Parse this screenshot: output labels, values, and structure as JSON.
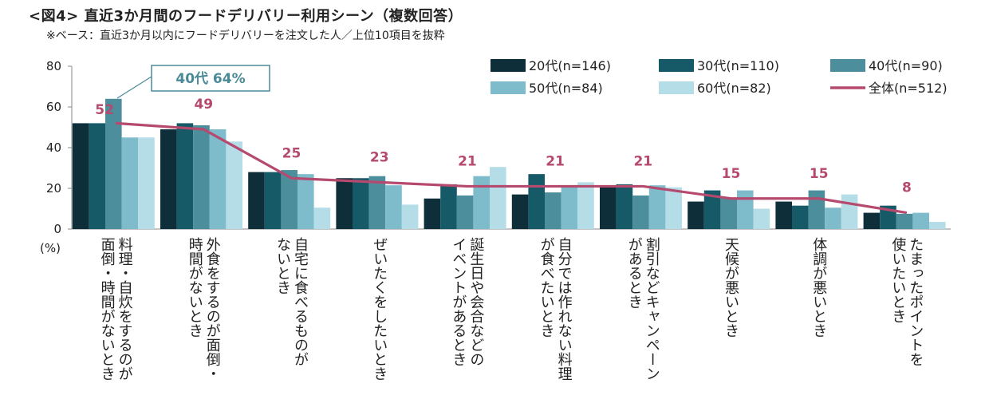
{
  "title": "<図4> 直近3か月間のフードデリバリー利用シーン（複数回答）",
  "subtitle": "※ベース：直近3か月以内にフードデリバリーを注文した人／上位10項目を抜粋",
  "callout": "40代  64%",
  "chart_data": {
    "type": "bar",
    "ylim": [
      0,
      80
    ],
    "yticks": [
      0,
      20,
      40,
      60,
      80
    ],
    "yunit": "(%)",
    "categories": [
      [
        "料理・自炊をするのが",
        "面倒・時間がないとき"
      ],
      [
        "外食をするのが面倒・",
        "時間がないとき"
      ],
      [
        "自宅に食べるものが",
        "ないとき"
      ],
      [
        "ぜいたくをしたいとき"
      ],
      [
        "誕生日や会合などの",
        "イベントがあるとき"
      ],
      [
        "自分では作れない料理",
        "が食べたいとき"
      ],
      [
        "割引などキャンペーン",
        "があるとき"
      ],
      [
        "天候が悪いとき"
      ],
      [
        "体調が悪いとき"
      ],
      [
        "たまったポイントを",
        "使いたいとき"
      ]
    ],
    "series": [
      {
        "name": "20代(n=146)",
        "color": "#0E2F3A",
        "values": [
          52,
          49,
          28,
          25,
          15,
          17,
          21,
          13.5,
          13.5,
          8
        ]
      },
      {
        "name": "30代(n=110)",
        "color": "#165A68",
        "values": [
          52,
          52,
          28,
          25,
          22,
          27,
          22,
          19,
          11.5,
          11.5
        ]
      },
      {
        "name": "40代(n=90)",
        "color": "#4C8E9B",
        "values": [
          64,
          51,
          29,
          26,
          16.5,
          18,
          16.5,
          15.5,
          19,
          7.5
        ]
      },
      {
        "name": "50代(n=84)",
        "color": "#7FBCCB",
        "values": [
          45,
          49,
          27,
          21.5,
          26,
          21,
          21.5,
          19,
          10.5,
          8
        ]
      },
      {
        "name": "60代(n=82)",
        "color": "#B4DDE7",
        "values": [
          45,
          43,
          10.5,
          12,
          30.5,
          23,
          20.5,
          10,
          17,
          3.5
        ]
      }
    ],
    "line": {
      "name": "全体(n=512)",
      "color": "#B5496E",
      "values": [
        52,
        49,
        25,
        23,
        21,
        21,
        21,
        15,
        15,
        8
      ]
    }
  }
}
